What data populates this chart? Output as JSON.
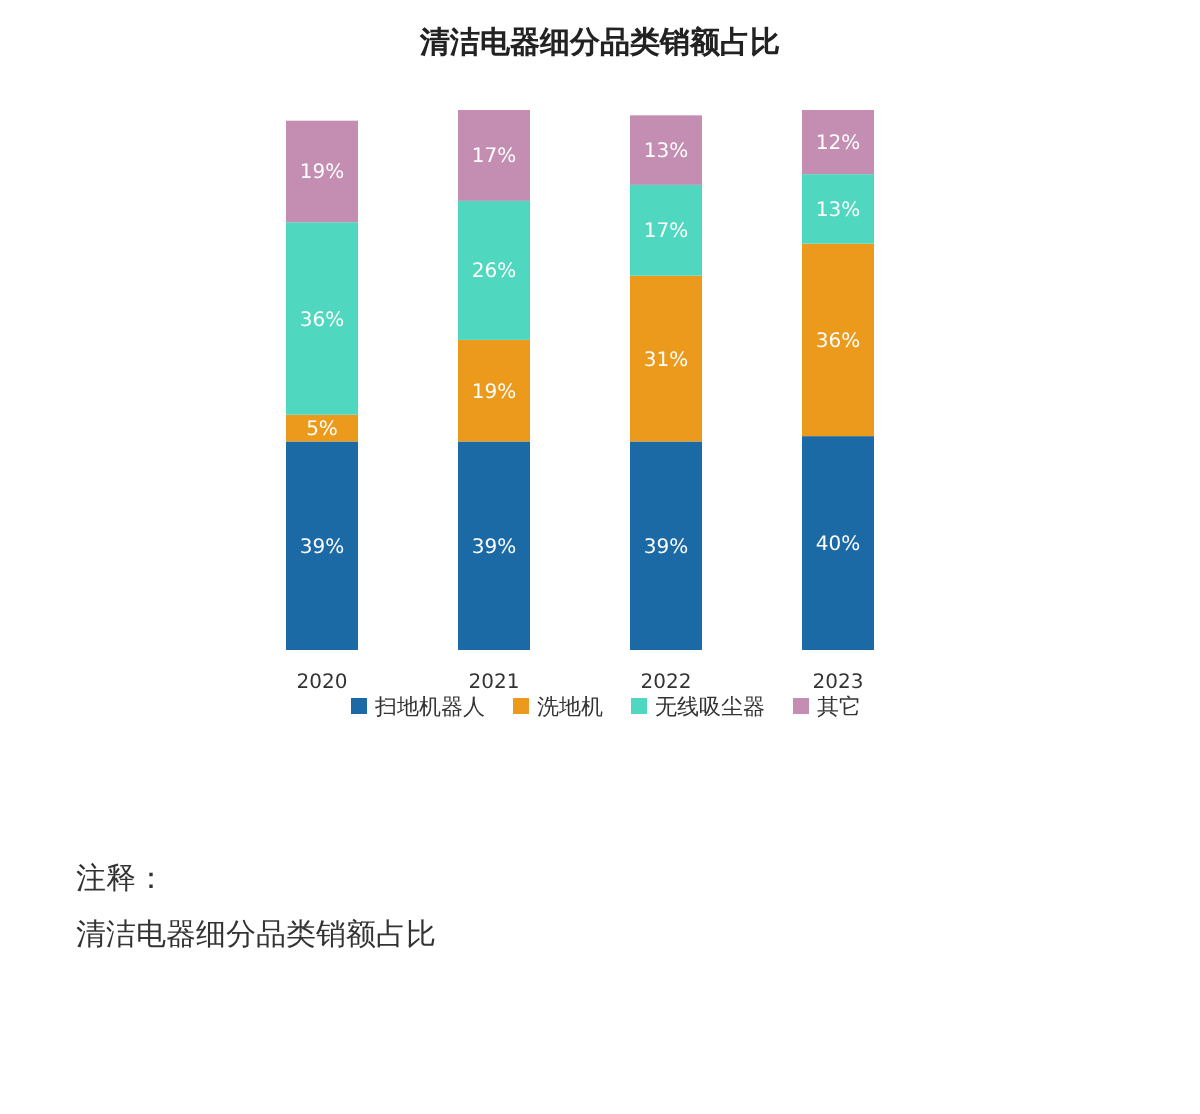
{
  "chart_data": {
    "type": "bar",
    "title": "清洁电器细分品类销额占比",
    "stacked": true,
    "legend": "bottom",
    "categories": [
      "2020",
      "2021",
      "2022",
      "2023"
    ],
    "series": [
      {
        "name": "扫地机器人",
        "color": "#1b6aa5",
        "values": [
          39,
          39,
          39,
          40
        ],
        "value_labels": [
          "39%",
          "39%",
          "39%",
          "40%"
        ]
      },
      {
        "name": "洗地机",
        "color": "#eb9a1c",
        "values": [
          5,
          19,
          31,
          36
        ],
        "value_labels": [
          "5%",
          "19%",
          "31%",
          "36%"
        ]
      },
      {
        "name": "无线吸尘器",
        "color": "#4fd8bf",
        "values": [
          36,
          26,
          17,
          13
        ],
        "value_labels": [
          "36%",
          "26%",
          "17%",
          "13%"
        ]
      },
      {
        "name": "其它",
        "color": "#c48db2",
        "values": [
          19,
          17,
          13,
          12
        ],
        "value_labels": [
          "19%",
          "17%",
          "13%",
          "12%"
        ]
      }
    ],
    "annotations": [
      "注释：",
      "清洁电器细分品类销额占比"
    ]
  }
}
